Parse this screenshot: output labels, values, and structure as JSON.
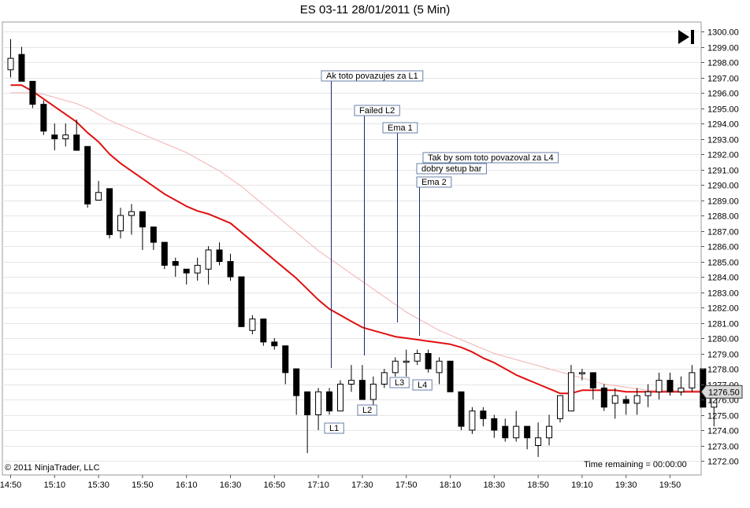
{
  "title": "ES 03-11  28/01/2011 (5 Min)",
  "copyright": "© 2011 NinjaTrader, LLC",
  "time_remaining": "Time remaining = 00:00:00",
  "last_price": "1276.50",
  "colors": {
    "ema_fast": "#e01010",
    "ema_slow": "#f4bcbc",
    "up_candle_fill": "#ffffff",
    "down_candle_fill": "#000000",
    "annotation_border": "#6a7fa8",
    "grid": "#e6e6e6"
  },
  "chart_data": {
    "type": "candlestick",
    "title": "ES 03-11  28/01/2011 (5 Min)",
    "interval": "5 Min",
    "grid": true,
    "ylim": [
      1271.5,
      1300.5
    ],
    "y_ticks": [
      "1272.00",
      "1273.00",
      "1274.00",
      "1275.00",
      "1276.00",
      "1277.00",
      "1278.00",
      "1279.00",
      "1280.00",
      "1281.00",
      "1282.00",
      "1283.00",
      "1284.00",
      "1285.00",
      "1286.00",
      "1287.00",
      "1288.00",
      "1289.00",
      "1290.00",
      "1291.00",
      "1292.00",
      "1293.00",
      "1294.00",
      "1295.00",
      "1296.00",
      "1297.00",
      "1298.00",
      "1299.00",
      "1300.00"
    ],
    "x_ticks": [
      "14:50",
      "15:10",
      "15:30",
      "15:50",
      "16:10",
      "16:30",
      "16:50",
      "17:10",
      "17:30",
      "17:50",
      "18:10",
      "18:30",
      "18:50",
      "19:10",
      "19:30",
      "19:50"
    ],
    "candles": [
      [
        1297.5,
        1299.5,
        1297.0,
        1298.25
      ],
      [
        1298.5,
        1299.0,
        1296.75,
        1296.75
      ],
      [
        1296.75,
        1296.75,
        1295.0,
        1295.25
      ],
      [
        1295.25,
        1295.5,
        1293.25,
        1293.5
      ],
      [
        1293.25,
        1294.0,
        1292.25,
        1293.0
      ],
      [
        1293.0,
        1294.0,
        1292.5,
        1293.25
      ],
      [
        1293.25,
        1294.25,
        1292.25,
        1292.25
      ],
      [
        1292.5,
        1292.5,
        1288.5,
        1288.75
      ],
      [
        1289.0,
        1290.25,
        1289.0,
        1289.5
      ],
      [
        1289.75,
        1289.75,
        1286.5,
        1286.75
      ],
      [
        1287.0,
        1288.5,
        1286.5,
        1288.0
      ],
      [
        1288.0,
        1288.75,
        1286.75,
        1288.25
      ],
      [
        1288.25,
        1288.25,
        1285.75,
        1287.25
      ],
      [
        1287.25,
        1287.25,
        1285.75,
        1286.25
      ],
      [
        1286.25,
        1286.25,
        1284.5,
        1284.75
      ],
      [
        1285.0,
        1285.25,
        1284.0,
        1284.75
      ],
      [
        1284.5,
        1284.5,
        1283.5,
        1284.25
      ],
      [
        1284.25,
        1285.25,
        1283.75,
        1284.75
      ],
      [
        1284.5,
        1286.0,
        1283.5,
        1285.75
      ],
      [
        1285.75,
        1286.25,
        1284.75,
        1285.0
      ],
      [
        1285.0,
        1285.5,
        1283.75,
        1284.0
      ],
      [
        1284.0,
        1284.0,
        1280.75,
        1280.75
      ],
      [
        1280.5,
        1281.5,
        1280.25,
        1281.25
      ],
      [
        1281.25,
        1281.25,
        1279.5,
        1279.75
      ],
      [
        1279.75,
        1280.0,
        1279.25,
        1279.5
      ],
      [
        1279.5,
        1279.5,
        1277.0,
        1277.75
      ],
      [
        1278.0,
        1278.0,
        1275.0,
        1276.25
      ],
      [
        1276.5,
        1276.5,
        1272.5,
        1275.0
      ],
      [
        1275.0,
        1276.75,
        1274.0,
        1276.5
      ],
      [
        1276.5,
        1276.75,
        1275.0,
        1275.25
      ],
      [
        1275.25,
        1277.25,
        1275.25,
        1277.0
      ],
      [
        1277.0,
        1278.25,
        1276.5,
        1277.25
      ],
      [
        1277.25,
        1278.25,
        1276.0,
        1276.0
      ],
      [
        1276.0,
        1277.5,
        1275.5,
        1277.0
      ],
      [
        1277.0,
        1278.0,
        1276.75,
        1277.75
      ],
      [
        1277.75,
        1278.75,
        1277.5,
        1278.5
      ],
      [
        1278.5,
        1279.25,
        1277.5,
        1278.5
      ],
      [
        1278.5,
        1279.25,
        1278.25,
        1279.0
      ],
      [
        1279.0,
        1279.25,
        1277.75,
        1278.0
      ],
      [
        1277.75,
        1278.75,
        1277.0,
        1278.5
      ],
      [
        1278.5,
        1278.5,
        1276.5,
        1276.5
      ],
      [
        1276.5,
        1276.5,
        1274.0,
        1274.25
      ],
      [
        1274.0,
        1275.5,
        1273.75,
        1275.25
      ],
      [
        1275.25,
        1275.5,
        1274.25,
        1274.75
      ],
      [
        1274.75,
        1275.0,
        1273.5,
        1274.0
      ],
      [
        1274.25,
        1274.75,
        1273.25,
        1273.5
      ],
      [
        1273.5,
        1275.25,
        1273.25,
        1274.25
      ],
      [
        1274.25,
        1274.25,
        1272.75,
        1273.5
      ],
      [
        1273.0,
        1274.5,
        1272.25,
        1273.5
      ],
      [
        1273.5,
        1275.0,
        1273.0,
        1274.25
      ],
      [
        1274.75,
        1276.25,
        1274.5,
        1276.25
      ],
      [
        1275.25,
        1278.25,
        1275.25,
        1277.75
      ],
      [
        1277.75,
        1278.0,
        1277.25,
        1277.75
      ],
      [
        1277.75,
        1277.75,
        1276.0,
        1276.75
      ],
      [
        1276.75,
        1277.0,
        1275.25,
        1275.5
      ],
      [
        1275.75,
        1276.75,
        1274.75,
        1276.25
      ],
      [
        1276.0,
        1276.25,
        1275.0,
        1275.75
      ],
      [
        1275.75,
        1276.75,
        1275.0,
        1276.25
      ],
      [
        1276.25,
        1277.0,
        1275.5,
        1276.5
      ],
      [
        1276.5,
        1277.75,
        1276.0,
        1277.25
      ],
      [
        1277.25,
        1277.75,
        1276.25,
        1276.5
      ],
      [
        1276.5,
        1277.5,
        1276.25,
        1276.75
      ],
      [
        1276.75,
        1278.25,
        1276.5,
        1277.75
      ],
      [
        1278.0,
        1278.0,
        1275.5,
        1275.5
      ],
      [
        1275.5,
        1276.5,
        1274.25,
        1276.5
      ]
    ],
    "series": [
      {
        "values": [
          1296.5,
          1296.5,
          1296.1,
          1295.6,
          1295.1,
          1294.6,
          1294.1,
          1293.4,
          1292.8,
          1292.0,
          1291.4,
          1290.9,
          1290.4,
          1289.9,
          1289.4,
          1289.0,
          1288.6,
          1288.3,
          1288.1,
          1287.8,
          1287.5,
          1286.9,
          1286.3,
          1285.7,
          1285.1,
          1284.5,
          1283.9,
          1283.2,
          1282.5,
          1281.9,
          1281.5,
          1281.1,
          1280.7,
          1280.5,
          1280.3,
          1280.1,
          1280.0,
          1279.9,
          1279.8,
          1279.7,
          1279.6,
          1279.4,
          1279.1,
          1278.7,
          1278.4,
          1278.0,
          1277.6,
          1277.3,
          1277.0,
          1276.7,
          1276.4,
          1276.4,
          1276.6,
          1276.6,
          1276.6,
          1276.6,
          1276.5,
          1276.5,
          1276.5,
          1276.5,
          1276.5,
          1276.5,
          1276.5,
          1276.5,
          1276.5
        ]
      },
      {
        "values": [
          1296.0,
          1296.0,
          1296.0,
          1295.9,
          1295.7,
          1295.5,
          1295.3,
          1295.0,
          1294.6,
          1294.2,
          1293.9,
          1293.6,
          1293.3,
          1293.0,
          1292.7,
          1292.4,
          1292.1,
          1291.7,
          1291.3,
          1290.9,
          1290.4,
          1289.9,
          1289.3,
          1288.7,
          1288.1,
          1287.5,
          1286.9,
          1286.3,
          1285.7,
          1285.2,
          1284.7,
          1284.2,
          1283.7,
          1283.2,
          1282.7,
          1282.2,
          1281.7,
          1281.3,
          1280.9,
          1280.5,
          1280.2,
          1279.9,
          1279.6,
          1279.3,
          1279.0,
          1278.8,
          1278.6,
          1278.4,
          1278.2,
          1278.0,
          1277.8,
          1277.6,
          1277.4,
          1277.2,
          1277.0,
          1276.9,
          1276.8,
          1276.7,
          1276.6,
          1276.6,
          1276.6,
          1276.6,
          1276.6,
          1276.6,
          1276.6
        ]
      }
    ],
    "annotations": [
      {
        "text": "Ak toto povazujes za L1"
      },
      {
        "text": "Failed L2"
      },
      {
        "text": "Ema 1"
      },
      {
        "text": "Tak by som toto povazoval za L4"
      },
      {
        "text": "dobry setup bar"
      },
      {
        "text": "Ema 2"
      },
      {
        "text": "L1"
      },
      {
        "text": "L2"
      },
      {
        "text": "L3"
      },
      {
        "text": "L4"
      }
    ]
  }
}
